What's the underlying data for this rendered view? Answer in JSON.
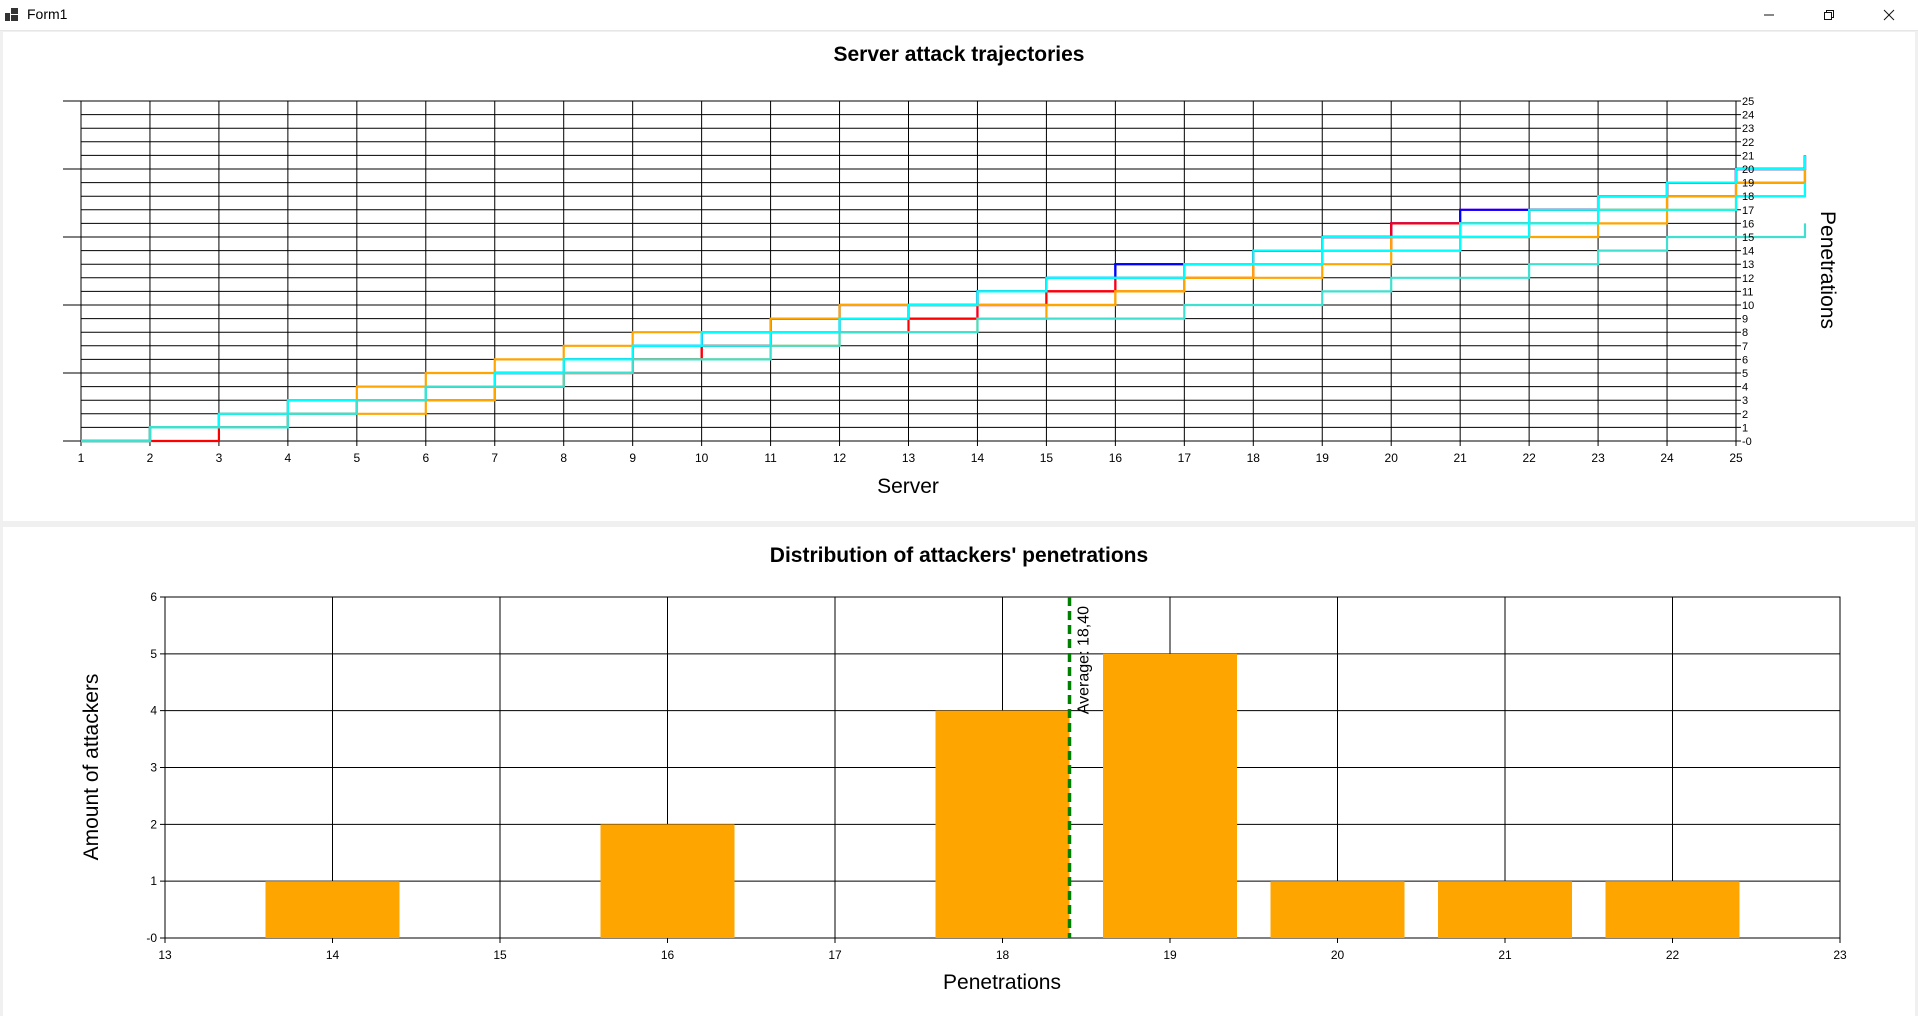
{
  "window": {
    "title": "Form1",
    "minimize_icon": "minimize-icon",
    "maximize_icon": "restore-icon",
    "close_icon": "close-icon"
  },
  "chart_data": [
    {
      "type": "line",
      "title": "Server attack trajectories",
      "xlabel": "Server",
      "ylabel": "Penetrations",
      "xlim": [
        1,
        25
      ],
      "ylim": [
        0,
        25
      ],
      "x_ticks": [
        "1",
        "2",
        "3",
        "4",
        "5",
        "6",
        "7",
        "8",
        "9",
        "10",
        "11",
        "12",
        "13",
        "14",
        "15",
        "16",
        "17",
        "18",
        "19",
        "20",
        "21",
        "22",
        "23",
        "24",
        "25"
      ],
      "y_ticks": [
        "-0",
        "1",
        "2",
        "3",
        "4",
        "5",
        "6",
        "7",
        "8",
        "9",
        "10",
        "11",
        "12",
        "13",
        "14",
        "15",
        "16",
        "17",
        "18",
        "19",
        "20",
        "21",
        "22",
        "23",
        "24",
        "25"
      ],
      "step": "post",
      "grid": true,
      "series": [
        {
          "color": "#ff00ff",
          "values": [
            0,
            1,
            1,
            2,
            3,
            3,
            4,
            5,
            6,
            7,
            8,
            9,
            9,
            10,
            11,
            12,
            13,
            14,
            15,
            16,
            17,
            17,
            18,
            19,
            20,
            21
          ]
        },
        {
          "color": "#0000ff",
          "values": [
            0,
            1,
            1,
            2,
            3,
            4,
            5,
            6,
            7,
            8,
            9,
            9,
            10,
            11,
            12,
            13,
            13,
            14,
            15,
            16,
            17,
            17,
            18,
            19,
            20,
            21
          ]
        },
        {
          "color": "#0000ff",
          "values": [
            0,
            1,
            2,
            3,
            3,
            4,
            5,
            6,
            7,
            8,
            9,
            10,
            10,
            11,
            12,
            13,
            13,
            14,
            15,
            15,
            16,
            17,
            18,
            19,
            20,
            21
          ]
        },
        {
          "color": "#ff0000",
          "values": [
            0,
            1,
            1,
            2,
            3,
            4,
            5,
            6,
            6,
            7,
            8,
            9,
            10,
            11,
            11,
            12,
            13,
            14,
            15,
            16,
            16,
            17,
            18,
            19,
            20,
            21
          ]
        },
        {
          "color": "#ff0000",
          "values": [
            0,
            0,
            1,
            2,
            3,
            4,
            4,
            5,
            6,
            7,
            8,
            8,
            9,
            10,
            11,
            11,
            12,
            13,
            14,
            15,
            15,
            16,
            17,
            18,
            19,
            20
          ]
        },
        {
          "color": "#ffa500",
          "values": [
            0,
            1,
            1,
            2,
            2,
            3,
            4,
            5,
            6,
            6,
            7,
            8,
            8,
            9,
            10,
            11,
            12,
            13,
            14,
            15,
            16,
            16,
            17,
            18,
            19,
            20
          ]
        },
        {
          "color": "#ffa500",
          "values": [
            0,
            1,
            2,
            3,
            4,
            5,
            6,
            7,
            8,
            8,
            9,
            10,
            10,
            10,
            10,
            11,
            12,
            12,
            13,
            14,
            15,
            15,
            16,
            17,
            18,
            19
          ]
        },
        {
          "color": "#00ffff",
          "values": [
            0,
            1,
            1,
            2,
            3,
            4,
            5,
            6,
            7,
            8,
            8,
            9,
            10,
            11,
            12,
            12,
            13,
            14,
            15,
            15,
            16,
            17,
            18,
            19,
            20,
            21
          ]
        },
        {
          "color": "#00ffff",
          "values": [
            0,
            1,
            2,
            3,
            3,
            4,
            5,
            6,
            7,
            7,
            8,
            9,
            10,
            11,
            12,
            12,
            13,
            13,
            14,
            14,
            15,
            16,
            17,
            17,
            18,
            19
          ]
        },
        {
          "color": "#40e0d0",
          "values": [
            0,
            1,
            1,
            2,
            3,
            4,
            4,
            5,
            6,
            6,
            7,
            8,
            8,
            9,
            9,
            9,
            10,
            10,
            11,
            12,
            12,
            13,
            14,
            15,
            15,
            16
          ]
        }
      ]
    },
    {
      "type": "bar",
      "title": "Distribution of attackers' penetrations",
      "xlabel": "Penetrations",
      "ylabel": "Amount of attackers",
      "xlim": [
        13,
        23
      ],
      "ylim": [
        0,
        6
      ],
      "x_ticks": [
        "13",
        "14",
        "15",
        "16",
        "17",
        "18",
        "19",
        "20",
        "21",
        "22",
        "23"
      ],
      "y_ticks": [
        "-0",
        "1",
        "2",
        "3",
        "4",
        "5",
        "6"
      ],
      "bar_color": "#ffa500",
      "bar_width": 0.8,
      "grid": true,
      "x": [
        14,
        16,
        18,
        19,
        20,
        21,
        22
      ],
      "values": [
        1,
        2,
        4,
        5,
        1,
        1,
        1
      ],
      "average": {
        "value": 18.4,
        "label": "Average: 18,40",
        "color": "#008000",
        "style": "dashed"
      }
    }
  ]
}
